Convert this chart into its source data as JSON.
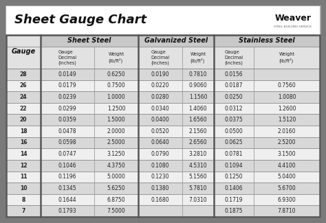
{
  "title": "Sheet Gauge Chart",
  "background_outer": "#7a7a7a",
  "background_inner": "#ffffff",
  "gauges": [
    28,
    26,
    24,
    22,
    20,
    18,
    16,
    14,
    12,
    11,
    10,
    8,
    7
  ],
  "sheet_steel": [
    [
      "0.0149",
      "0.6250"
    ],
    [
      "0.0179",
      "0.7500"
    ],
    [
      "0.0239",
      "1.0000"
    ],
    [
      "0.0299",
      "1.2500"
    ],
    [
      "0.0359",
      "1.5000"
    ],
    [
      "0.0478",
      "2.0000"
    ],
    [
      "0.0598",
      "2.5000"
    ],
    [
      "0.0747",
      "3.1250"
    ],
    [
      "0.1046",
      "4.3750"
    ],
    [
      "0.1196",
      "5.0000"
    ],
    [
      "0.1345",
      "5.6250"
    ],
    [
      "0.1644",
      "6.8750"
    ],
    [
      "0.1793",
      "7.5000"
    ]
  ],
  "galvanized_steel": [
    [
      "0.0190",
      "0.7810"
    ],
    [
      "0.0220",
      "0.9060"
    ],
    [
      "0.0280",
      "1.1560"
    ],
    [
      "0.0340",
      "1.4060"
    ],
    [
      "0.0400",
      "1.6560"
    ],
    [
      "0.0520",
      "2.1560"
    ],
    [
      "0.0640",
      "2.6560"
    ],
    [
      "0.0790",
      "3.2810"
    ],
    [
      "0.1080",
      "4.5310"
    ],
    [
      "0.1230",
      "5.1560"
    ],
    [
      "0.1380",
      "5.7810"
    ],
    [
      "0.1680",
      "7.0310"
    ],
    [
      "",
      ""
    ]
  ],
  "stainless_steel": [
    [
      "0.0156",
      ""
    ],
    [
      "0.0187",
      "0.7560"
    ],
    [
      "0.0250",
      "1.0080"
    ],
    [
      "0.0312",
      "1.2600"
    ],
    [
      "0.0375",
      "1.5120"
    ],
    [
      "0.0500",
      "2.0160"
    ],
    [
      "0.0625",
      "2.5200"
    ],
    [
      "0.0781",
      "3.1500"
    ],
    [
      "0.1094",
      "4.4100"
    ],
    [
      "0.1250",
      "5.0400"
    ],
    [
      "0.1406",
      "5.6700"
    ],
    [
      "0.1719",
      "6.9300"
    ],
    [
      "0.1875",
      "7.8710"
    ]
  ],
  "row_colors": [
    "#d8d8d8",
    "#efefef"
  ],
  "sec_header_bg": "#c8c8c8",
  "sub_header_bg": "#e2e2e2",
  "gauge_col_bg": "#e8e8e8",
  "title_bg": "#ffffff",
  "outer_frame": "#6a6a6a",
  "inner_border": "#555555",
  "thin_line": "#999999"
}
